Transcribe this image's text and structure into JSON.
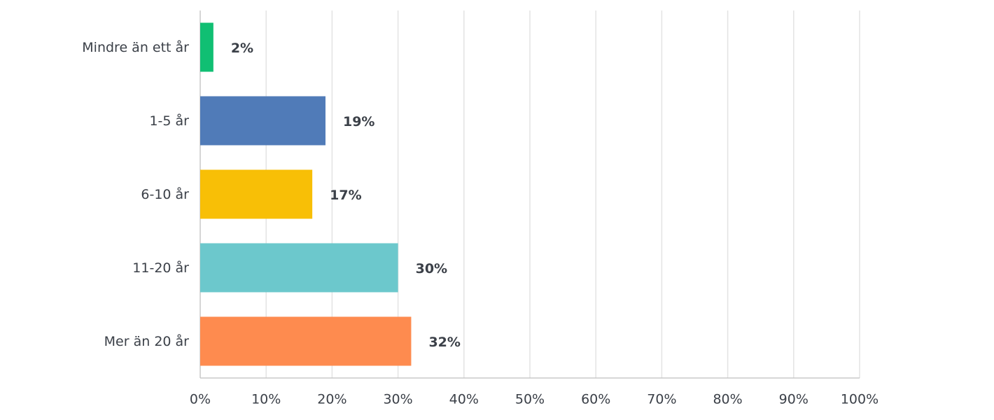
{
  "chart_data": {
    "type": "hbar",
    "categories": [
      "Mindre än ett år",
      "1-5 år",
      "6-10 år",
      "11-20 år",
      "Mer än 20 år"
    ],
    "values": [
      2,
      19,
      17,
      30,
      32
    ],
    "value_labels": [
      "2%",
      "19%",
      "17%",
      "30%",
      "32%"
    ],
    "colors": [
      "#10bf73",
      "#507bb8",
      "#f8bf06",
      "#6cc8cc",
      "#fe8b4f"
    ],
    "xlim": [
      0,
      100
    ],
    "xticks": [
      {
        "value": 0,
        "label": "0%"
      },
      {
        "value": 10,
        "label": "10%"
      },
      {
        "value": 20,
        "label": "20%"
      },
      {
        "value": 30,
        "label": "30%"
      },
      {
        "value": 40,
        "label": "40%"
      },
      {
        "value": 50,
        "label": "50%"
      },
      {
        "value": 60,
        "label": "60%"
      },
      {
        "value": 70,
        "label": "70%"
      },
      {
        "value": 80,
        "label": "80%"
      },
      {
        "value": 90,
        "label": "90%"
      },
      {
        "value": 100,
        "label": "100%"
      }
    ],
    "grid": true
  }
}
